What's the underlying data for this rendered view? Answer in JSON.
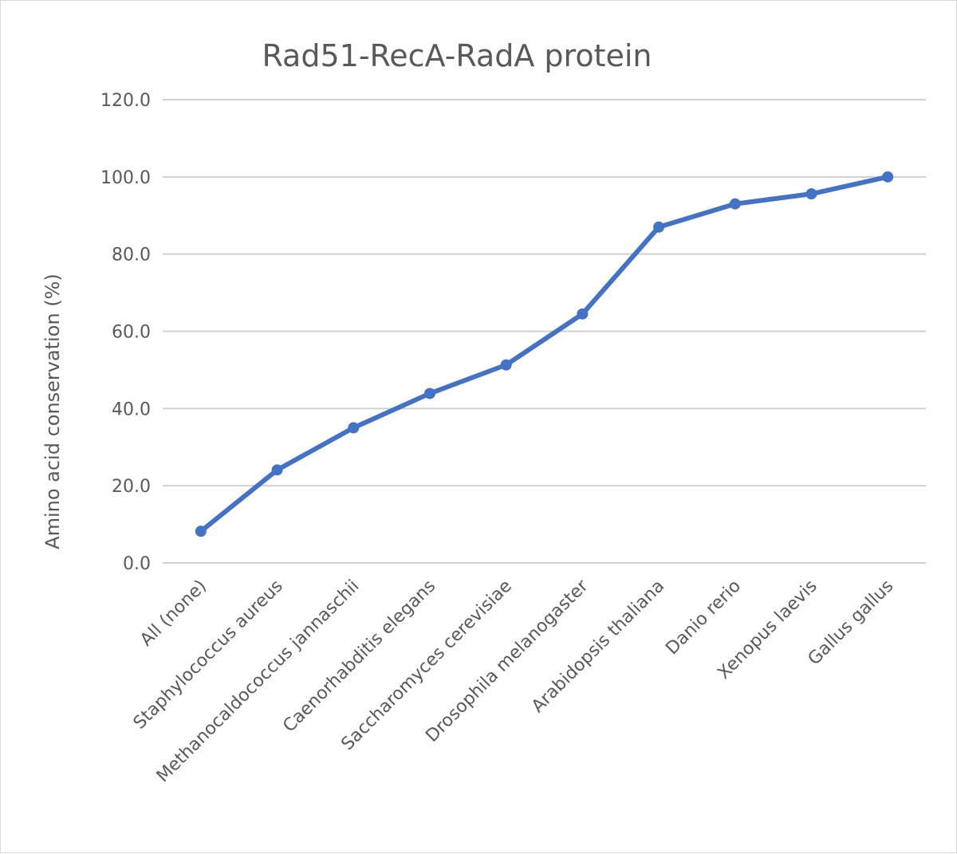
{
  "chart_data": {
    "type": "line",
    "title": "Rad51-RecA-RadA protein",
    "ylabel": "Amino acid conservation (%)",
    "xlabel": "",
    "categories": [
      "All (none)",
      "Staphylococcus aureus",
      "Methanocaldococcus jannaschii",
      "Caenorhabditis elegans",
      "Saccharomyces cerevisiae",
      "Drosophila melanogaster",
      "Arabidopsis thaliana",
      "Danio rerio",
      "Xenopus laevis",
      "Gallus gallus"
    ],
    "series": [
      {
        "values": [
          8.2,
          24.1,
          35.0,
          43.9,
          51.3,
          64.5,
          87.0,
          93.0,
          95.6,
          100.0
        ],
        "color": "#4472c4"
      }
    ],
    "ylim": [
      0,
      120
    ],
    "yticks": [
      "0.0",
      "20.0",
      "40.0",
      "60.0",
      "80.0",
      "100.0",
      "120.0"
    ],
    "grid": true,
    "legend": "none"
  }
}
